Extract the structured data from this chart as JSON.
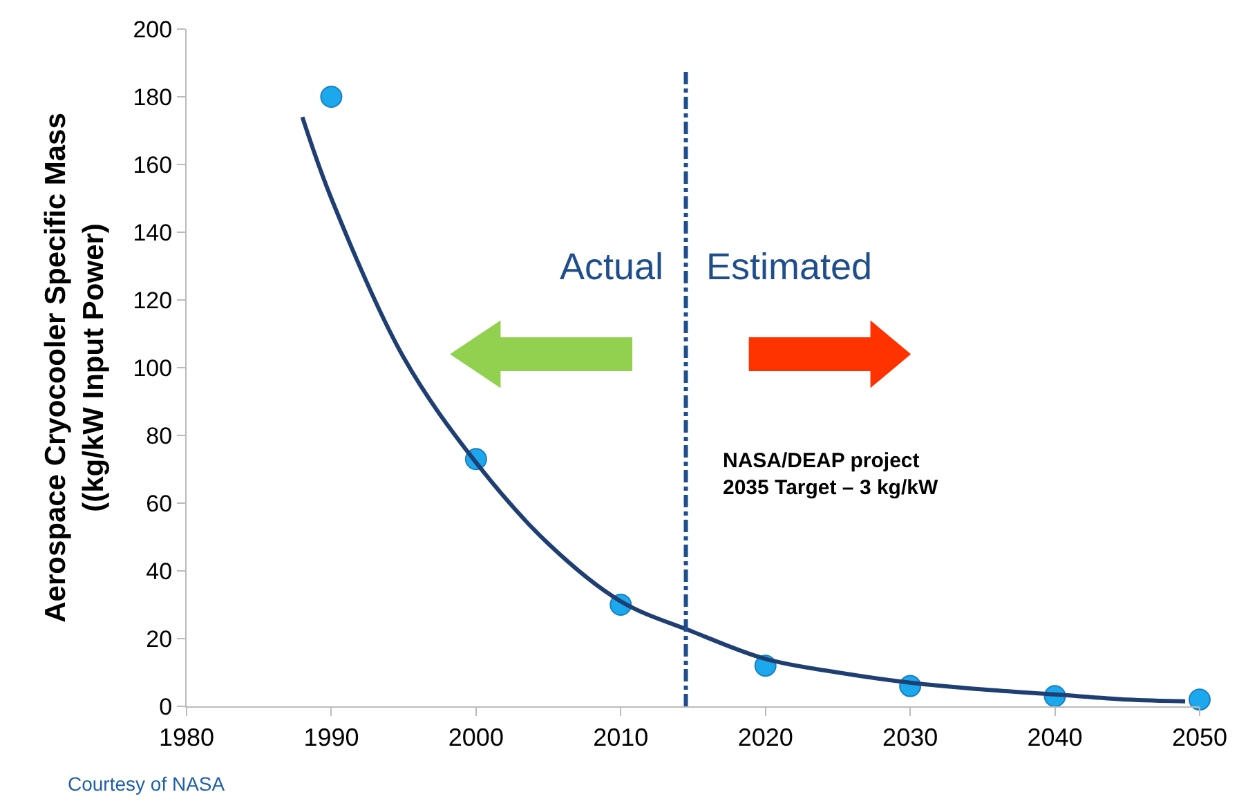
{
  "chart_data": {
    "type": "scatter",
    "ylabel": "Aerospace Cryocooler Specific Mass\n((kg/kW Input Power)",
    "x": [
      1990,
      2000,
      2010,
      2020,
      2030,
      2040,
      2050
    ],
    "series": [
      {
        "color": "#1ca8ec",
        "marker": "circle",
        "values": [
          180,
          73,
          30,
          12,
          6,
          3,
          2
        ]
      },
      {
        "type": "line",
        "color": "#1f3f73",
        "line_style": "solid",
        "x": [
          1988,
          1990,
          1995,
          2000,
          2005,
          2010,
          2015,
          2020,
          2025,
          2030,
          2035,
          2040,
          2045,
          2049
        ],
        "values": [
          174,
          150,
          103,
          72,
          48,
          31,
          22,
          14,
          10,
          7,
          5,
          3.5,
          2,
          1.5
        ]
      }
    ],
    "xlim": [
      1980,
      2050
    ],
    "xticks": [
      1980,
      1990,
      2000,
      2010,
      2020,
      2030,
      2040,
      2050
    ],
    "ylim": [
      0,
      200
    ],
    "yticks": [
      0,
      20,
      40,
      60,
      80,
      100,
      120,
      140,
      160,
      180,
      200
    ],
    "ref_lines": [
      {
        "axis": "x",
        "value": 2014.5,
        "color": "#1f4e8c",
        "line_style": "dashdot"
      }
    ],
    "annotations": [
      "Actual",
      "Estimated",
      "NASA/DEAP project\n2035 Target – 3 kg/kW",
      "Courtesy of NASA"
    ]
  }
}
